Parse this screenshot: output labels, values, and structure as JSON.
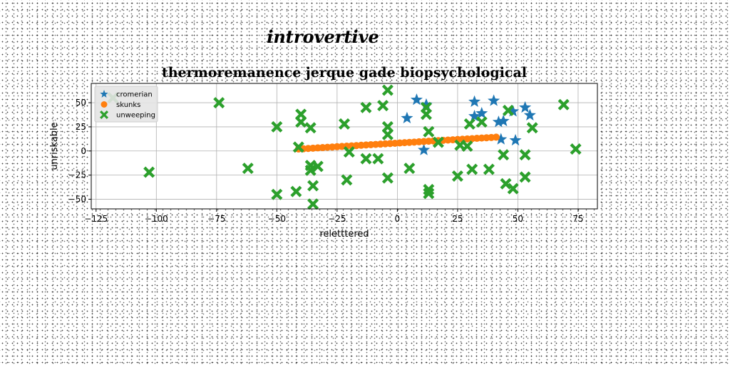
{
  "chart_data": {
    "type": "scatter",
    "suptitle": "introvertive",
    "title": "thermoremanence jerque gade biopsychological",
    "xlabel": "reletttered",
    "ylabel": "unriskable",
    "xlim": [
      -127,
      83
    ],
    "ylim": [
      -60,
      70
    ],
    "xticks": [
      -125,
      -100,
      -75,
      -50,
      -25,
      0,
      25,
      50,
      75
    ],
    "yticks": [
      -50,
      -25,
      0,
      25,
      50
    ],
    "grid": true,
    "legend_position": "top-left",
    "series": [
      {
        "name": "cromerian",
        "marker": "star",
        "color": "#1f77b4",
        "points": [
          [
            4,
            34
          ],
          [
            8,
            53
          ],
          [
            12,
            48
          ],
          [
            11,
            1
          ],
          [
            32,
            51
          ],
          [
            32,
            36
          ],
          [
            35,
            39
          ],
          [
            40,
            52
          ],
          [
            42,
            30
          ],
          [
            44,
            31
          ],
          [
            43,
            12
          ],
          [
            48,
            41
          ],
          [
            49,
            11
          ],
          [
            53,
            45
          ],
          [
            55,
            37
          ]
        ]
      },
      {
        "name": "skunks",
        "marker": "circle",
        "color": "#ff7f0e",
        "points": [
          [
            -41,
            2
          ],
          [
            -39,
            2.3
          ],
          [
            -37,
            2.6
          ],
          [
            -35,
            2.9
          ],
          [
            -33,
            3.2
          ],
          [
            -31,
            3.5
          ],
          [
            -29,
            3.8
          ],
          [
            -27,
            4.1
          ],
          [
            -25,
            4.4
          ],
          [
            -23,
            4.7
          ],
          [
            -21,
            5.0
          ],
          [
            -19,
            5.3
          ],
          [
            -17,
            5.6
          ],
          [
            -15,
            5.9
          ],
          [
            -13,
            6.2
          ],
          [
            -11,
            6.5
          ],
          [
            -9,
            6.8
          ],
          [
            -7,
            7.1
          ],
          [
            -5,
            7.4
          ],
          [
            -3,
            7.7
          ],
          [
            -1,
            8.0
          ],
          [
            1,
            8.3
          ],
          [
            3,
            8.6
          ],
          [
            5,
            8.9
          ],
          [
            7,
            9.2
          ],
          [
            9,
            9.5
          ],
          [
            11,
            9.8
          ],
          [
            13,
            10.1
          ],
          [
            15,
            10.4
          ],
          [
            17,
            10.7
          ],
          [
            19,
            11.0
          ],
          [
            21,
            11.3
          ],
          [
            23,
            11.6
          ],
          [
            25,
            11.9
          ],
          [
            27,
            12.2
          ],
          [
            29,
            12.5
          ],
          [
            31,
            12.8
          ],
          [
            33,
            13.1
          ],
          [
            35,
            13.4
          ],
          [
            37,
            13.7
          ],
          [
            39,
            14.0
          ],
          [
            41,
            14.3
          ]
        ]
      },
      {
        "name": "unweeping",
        "marker": "x",
        "color": "#2ca02c",
        "points": [
          [
            -118,
            55
          ],
          [
            -103,
            -22
          ],
          [
            -74,
            50
          ],
          [
            -62,
            -18
          ],
          [
            -50,
            25
          ],
          [
            -50,
            -45
          ],
          [
            -42,
            -42
          ],
          [
            -41,
            4
          ],
          [
            -40,
            38
          ],
          [
            -40,
            30
          ],
          [
            -36,
            24
          ],
          [
            -36,
            -15
          ],
          [
            -36,
            -20
          ],
          [
            -35,
            -36
          ],
          [
            -35,
            -55
          ],
          [
            -33,
            -16
          ],
          [
            -22,
            28
          ],
          [
            -21,
            -30
          ],
          [
            -20,
            -1
          ],
          [
            -13,
            45
          ],
          [
            -13,
            -8
          ],
          [
            -8,
            -8
          ],
          [
            -6,
            47
          ],
          [
            -4,
            63
          ],
          [
            -4,
            25
          ],
          [
            -4,
            17
          ],
          [
            -4,
            -28
          ],
          [
            5,
            -18
          ],
          [
            12,
            45
          ],
          [
            12,
            38
          ],
          [
            13,
            20
          ],
          [
            13,
            -40
          ],
          [
            13,
            -44
          ],
          [
            17,
            9
          ],
          [
            25,
            -26
          ],
          [
            26,
            6
          ],
          [
            29,
            5
          ],
          [
            30,
            28
          ],
          [
            31,
            -19
          ],
          [
            35,
            30
          ],
          [
            38,
            -19
          ],
          [
            44,
            -4
          ],
          [
            45,
            -34
          ],
          [
            46,
            42
          ],
          [
            48,
            -39
          ],
          [
            53,
            -27
          ],
          [
            53,
            -4
          ],
          [
            56,
            24
          ],
          [
            69,
            48
          ],
          [
            74,
            2
          ]
        ]
      }
    ]
  }
}
